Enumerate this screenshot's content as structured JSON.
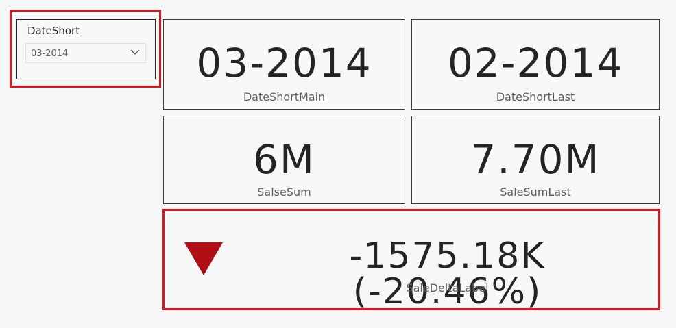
{
  "slicer": {
    "title": "DateShort",
    "selected_value": "03-2014"
  },
  "cards": {
    "date_short_main": {
      "value": "03-2014",
      "label": "DateShortMain"
    },
    "date_short_last": {
      "value": "02-2014",
      "label": "DateShortLast"
    },
    "salse_sum": {
      "value": "6M",
      "label": "SalseSum"
    },
    "sale_sum_last": {
      "value": "7.70M",
      "label": "SaleSumLast"
    },
    "sale_delta": {
      "value": "-1575.18K (-20.46%)",
      "label": "SaleDeltaLabel"
    }
  },
  "colors": {
    "highlight": "#e0141e",
    "delta_down": "#b01015",
    "background": "#f5f8f6"
  },
  "icons": {
    "delta_indicator": "triangle-down-icon",
    "dropdown": "chevron-down-icon"
  }
}
